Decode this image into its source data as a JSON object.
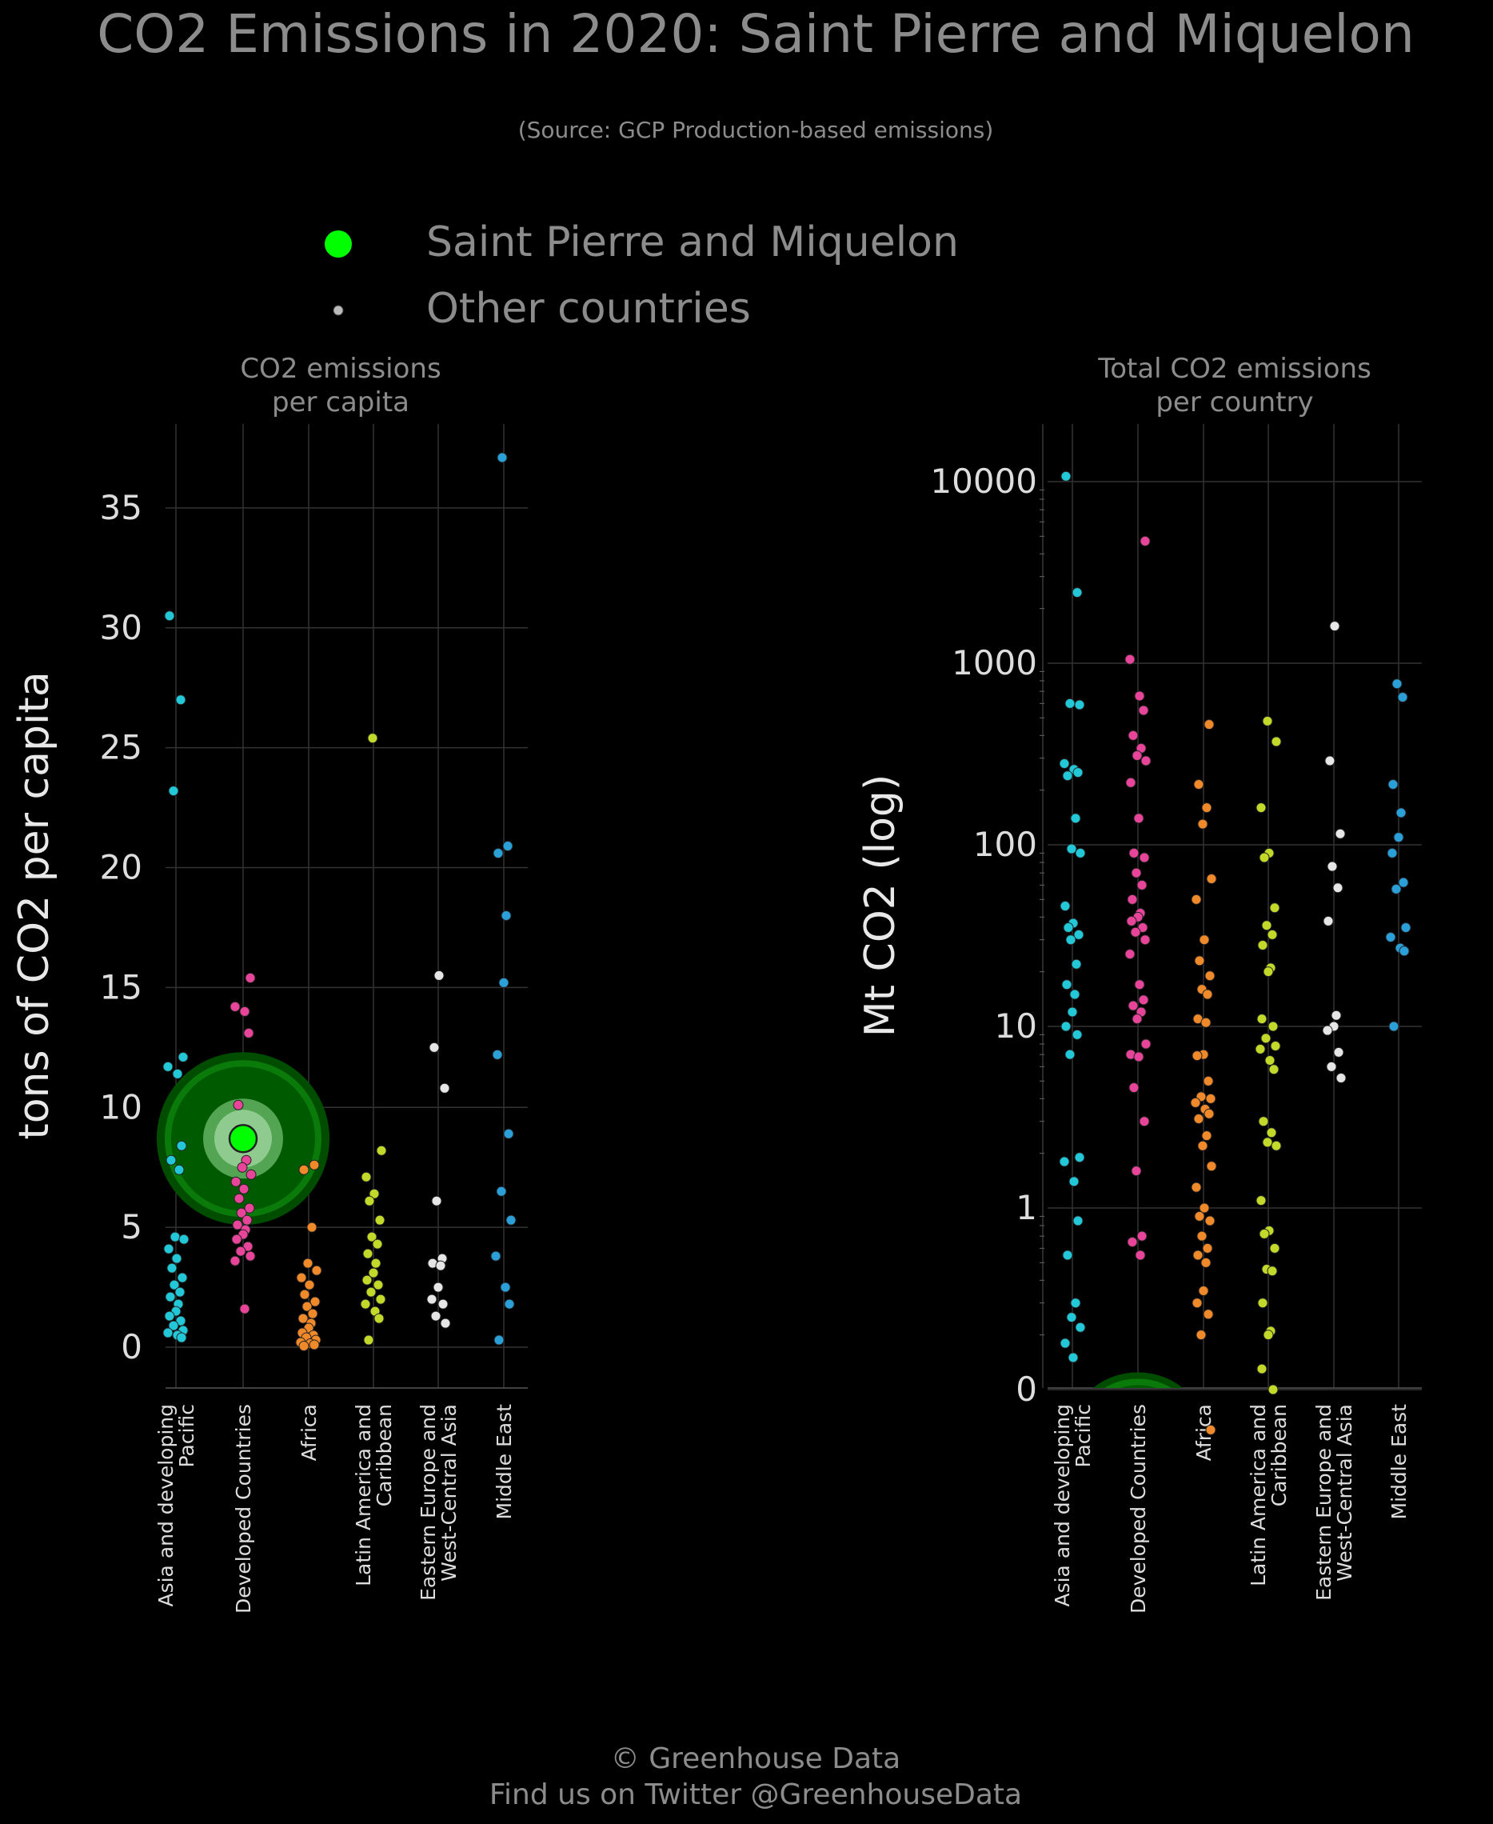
{
  "title": "CO2 Emissions in 2020: Saint Pierre and Miquelon",
  "subtitle": "(Source: GCP Production-based emissions)",
  "legend": {
    "highlight_label": "Saint Pierre and Miquelon",
    "others_label": "Other countries",
    "highlight_color": "#00ff00",
    "others_color": "#bbbbbb"
  },
  "footer": {
    "line1": "© Greenhouse Data",
    "line2": "Find us on Twitter @GreenhouseData"
  },
  "colors": {
    "Asia and developing Pacific": "#22c8d8",
    "Developed Countries": "#e8449a",
    "Africa": "#f0892a",
    "Latin America and Caribbean": "#c2d92a",
    "Eastern Europe and West-Central Asia": "#e6e6e6",
    "Middle East": "#2a9fd8"
  },
  "chart_data": [
    {
      "type": "scatter",
      "title": "CO2 emissions\nper capita",
      "ylabel": "tons of CO2 per capita",
      "ylim": [
        -1.7,
        38.5
      ],
      "yticks": [
        "0",
        "5",
        "10",
        "15",
        "20",
        "25",
        "30",
        "35"
      ],
      "categories": [
        "Asia and developing\nPacific",
        "Developed Countries",
        "Africa",
        "Latin America and\nCaribbean",
        "Eastern Europe and\nWest-Central Asia",
        "Middle East"
      ],
      "highlight": {
        "name": "Saint Pierre and Miquelon",
        "category": "Developed Countries",
        "value": 8.7
      },
      "series": [
        {
          "category": "Asia and developing Pacific",
          "values": [
            30.5,
            27,
            23.2,
            12.1,
            11.7,
            11.4,
            8.4,
            7.8,
            7.4,
            4.6,
            4.5,
            4.1,
            3.7,
            3.3,
            2.9,
            2.6,
            2.3,
            2.1,
            1.8,
            1.5,
            1.3,
            1.1,
            0.9,
            0.7,
            0.6,
            0.5,
            0.4
          ]
        },
        {
          "category": "Developed Countries",
          "values": [
            15.4,
            14.2,
            14.0,
            13.1,
            10.1,
            7.8,
            7.5,
            7.2,
            6.9,
            6.6,
            6.2,
            5.8,
            5.6,
            5.3,
            5.1,
            4.9,
            4.7,
            4.5,
            4.2,
            4.0,
            3.8,
            3.6,
            1.6
          ]
        },
        {
          "category": "Africa",
          "values": [
            7.6,
            7.4,
            5.0,
            3.5,
            3.2,
            2.9,
            2.6,
            2.2,
            1.9,
            1.7,
            1.4,
            1.2,
            1.0,
            0.8,
            0.6,
            0.5,
            0.4,
            0.3,
            0.2,
            0.15,
            0.1,
            0.05
          ]
        },
        {
          "category": "Latin America and Caribbean",
          "values": [
            25.4,
            8.2,
            7.1,
            6.4,
            6.1,
            5.3,
            4.6,
            4.3,
            3.9,
            3.5,
            3.1,
            2.8,
            2.6,
            2.3,
            2.0,
            1.8,
            1.5,
            1.2,
            0.3
          ]
        },
        {
          "category": "Eastern Europe and West-Central Asia",
          "values": [
            15.5,
            12.5,
            10.8,
            6.1,
            3.7,
            3.5,
            3.4,
            2.5,
            2.0,
            1.8,
            1.3,
            1.0
          ]
        },
        {
          "category": "Middle East",
          "values": [
            37.1,
            20.9,
            20.6,
            18.0,
            15.2,
            12.2,
            8.9,
            6.5,
            5.3,
            3.8,
            2.5,
            1.8,
            0.3
          ]
        }
      ]
    },
    {
      "type": "scatter",
      "title": "Total CO2 emissions\nper country",
      "ylabel": "Mt CO2 (log)",
      "yscale": "log",
      "yticks": [
        "0",
        "1",
        "10",
        "100",
        "1000",
        "10000"
      ],
      "categories": [
        "Asia and developing\nPacific",
        "Developed Countries",
        "Africa",
        "Latin America and\nCaribbean",
        "Eastern Europe and\nWest-Central Asia",
        "Middle East"
      ],
      "highlight": {
        "name": "Saint Pierre and Miquelon",
        "category": "Developed Countries",
        "value": 0.05
      },
      "series": [
        {
          "category": "Asia and developing Pacific",
          "values": [
            10700,
            2450,
            600,
            590,
            280,
            260,
            250,
            240,
            140,
            95,
            90,
            46,
            37,
            35,
            32,
            30,
            22,
            17,
            15,
            12,
            10,
            9,
            7,
            1.9,
            1.8,
            1.4,
            0.85,
            0.55,
            0.3,
            0.25,
            0.22,
            0.18,
            0.15
          ]
        },
        {
          "category": "Developed Countries",
          "values": [
            4700,
            1050,
            660,
            550,
            400,
            340,
            310,
            290,
            220,
            140,
            90,
            85,
            70,
            60,
            50,
            42,
            40,
            38,
            35,
            33,
            30,
            25,
            17,
            14,
            13,
            12,
            11,
            8,
            7,
            6.8,
            4.6,
            3,
            1.6,
            0.7,
            0.65,
            0.55
          ]
        },
        {
          "category": "Africa",
          "values": [
            460,
            215,
            160,
            130,
            65,
            50,
            30,
            23,
            19,
            16,
            15,
            11,
            10.5,
            7,
            6.9,
            5,
            4.1,
            4,
            3.8,
            3.5,
            3.3,
            3.1,
            2.5,
            2.2,
            1.7,
            1.3,
            1.0,
            0.9,
            0.85,
            0.7,
            0.6,
            0.55,
            0.5,
            0.35,
            0.3,
            0.26,
            0.2,
            0.06
          ]
        },
        {
          "category": "Latin America and Caribbean",
          "values": [
            480,
            370,
            160,
            90,
            85,
            45,
            36,
            32,
            28,
            21,
            20,
            11,
            10,
            8.6,
            7.8,
            7.5,
            6.5,
            5.8,
            3,
            2.6,
            2.3,
            2.2,
            1.1,
            0.75,
            0.72,
            0.6,
            0.46,
            0.45,
            0.3,
            0.21,
            0.2,
            0.13,
            0.1
          ]
        },
        {
          "category": "Eastern Europe and West-Central Asia",
          "values": [
            1600,
            290,
            115,
            76,
            58,
            38,
            11.5,
            10,
            9.5,
            7.2,
            6,
            5.2
          ]
        },
        {
          "category": "Middle East",
          "values": [
            770,
            650,
            215,
            150,
            110,
            90,
            62,
            57,
            35,
            31,
            27,
            26,
            10
          ]
        }
      ]
    }
  ]
}
